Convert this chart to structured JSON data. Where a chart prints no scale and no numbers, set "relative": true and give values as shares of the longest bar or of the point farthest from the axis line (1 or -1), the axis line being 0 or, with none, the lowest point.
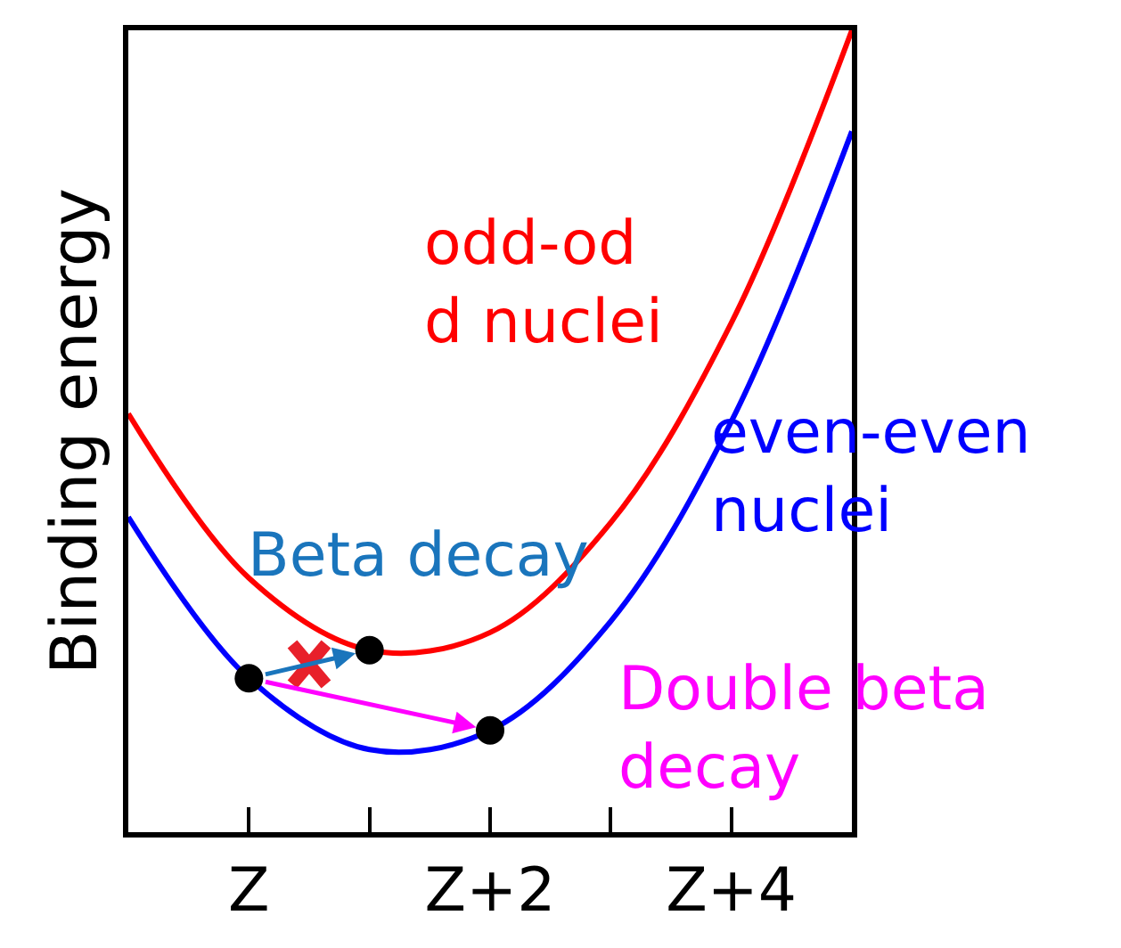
{
  "chart_data": {
    "type": "line",
    "relative": true,
    "ylabel": "Binding energy",
    "categories": [
      null,
      "Z",
      null,
      "Z+2",
      null,
      "Z+4",
      null
    ],
    "annotations": [
      "Beta decay",
      "Double beta\ndecay"
    ],
    "series": [
      {
        "name": "odd-od\nd nuclei",
        "color": "#ff0000",
        "values": [
          0.522,
          0.317,
          0.227,
          0.249,
          0.386,
          0.635,
          1.0
        ]
      },
      {
        "name": "even-even\nnuclei",
        "color": "#0000ff",
        "values": [
          0.393,
          0.192,
          0.103,
          0.127,
          0.263,
          0.512,
          0.874
        ]
      },
      {
        "type": "scatter",
        "color": "#000000",
        "marker": "circle",
        "values": [
          null,
          0.192,
          0.227,
          0.127,
          null,
          null,
          null
        ]
      }
    ]
  }
}
